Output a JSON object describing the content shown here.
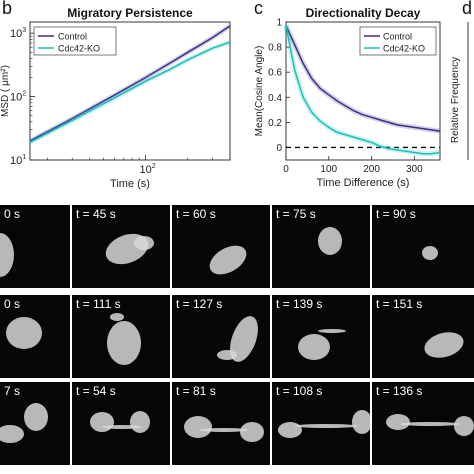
{
  "panels": {
    "b": "b",
    "c": "c",
    "d": "d"
  },
  "chart_data": [
    {
      "type": "line",
      "title": "Migratory Persistence",
      "xlabel": "Time (s)",
      "ylabel": "MSD ( μm²)",
      "xscale": "log",
      "yscale": "log",
      "xlim": [
        15,
        400
      ],
      "ylim": [
        10,
        1500
      ],
      "xticks": [
        {
          "value": 100,
          "base": "10",
          "exp": "2"
        }
      ],
      "yticks": [
        {
          "value": 10,
          "base": "10",
          "exp": "1"
        },
        {
          "value": 100,
          "base": "10",
          "exp": "2"
        },
        {
          "value": 1000,
          "base": "10",
          "exp": "3"
        }
      ],
      "legend": "top-left",
      "series": [
        {
          "name": "Control",
          "color": "#3b2e8f",
          "x": [
            15,
            30,
            60,
            100,
            150,
            200,
            300,
            400
          ],
          "y": [
            20,
            45,
            105,
            200,
            340,
            500,
            850,
            1300
          ]
        },
        {
          "name": "Cdc42-KO",
          "color": "#19c0b9",
          "x": [
            15,
            30,
            60,
            100,
            150,
            200,
            300,
            400
          ],
          "y": [
            19,
            42,
            95,
            175,
            270,
            380,
            580,
            720
          ]
        }
      ]
    },
    {
      "type": "line",
      "title": "Directionality Decay",
      "xlabel": "Time Difference (s)",
      "ylabel": "Mean(Cosine Angle)",
      "xlim": [
        0,
        360
      ],
      "ylim": [
        -0.1,
        1
      ],
      "xticks": [
        0,
        100,
        200,
        300
      ],
      "yticks": [
        0,
        0.2,
        0.4,
        0.6,
        0.8,
        1
      ],
      "legend": "top-right",
      "reference_line": 0,
      "series": [
        {
          "name": "Control",
          "color": "#3b2e8f",
          "x": [
            0,
            20,
            40,
            60,
            80,
            100,
            120,
            140,
            160,
            180,
            200,
            220,
            240,
            260,
            280,
            300,
            320,
            340,
            360
          ],
          "y": [
            0.97,
            0.82,
            0.67,
            0.55,
            0.47,
            0.42,
            0.37,
            0.33,
            0.29,
            0.26,
            0.24,
            0.22,
            0.2,
            0.18,
            0.17,
            0.16,
            0.15,
            0.14,
            0.13
          ]
        },
        {
          "name": "Cdc42-KO",
          "color": "#19c0b9",
          "x": [
            0,
            20,
            40,
            60,
            80,
            100,
            120,
            140,
            160,
            180,
            200,
            220,
            240,
            260,
            280,
            300,
            320,
            340,
            360
          ],
          "y": [
            0.97,
            0.62,
            0.4,
            0.28,
            0.21,
            0.16,
            0.12,
            0.1,
            0.08,
            0.06,
            0.04,
            0.01,
            -0.01,
            -0.02,
            -0.03,
            -0.04,
            -0.05,
            -0.05,
            -0.04
          ]
        }
      ]
    }
  ],
  "third_panel": {
    "ylabel": "Relative Frequency"
  },
  "image_rows": [
    {
      "labels": [
        "0 s",
        "t = 45 s",
        "t = 60 s",
        "t = 75 s",
        "t = 90 s"
      ]
    },
    {
      "labels": [
        "0 s",
        "t = 111 s",
        "t = 127 s",
        "t = 139 s",
        "t = 151 s"
      ]
    },
    {
      "labels": [
        "7 s",
        "t = 54 s",
        "t = 81 s",
        "t = 108 s",
        "t = 136 s"
      ]
    }
  ]
}
